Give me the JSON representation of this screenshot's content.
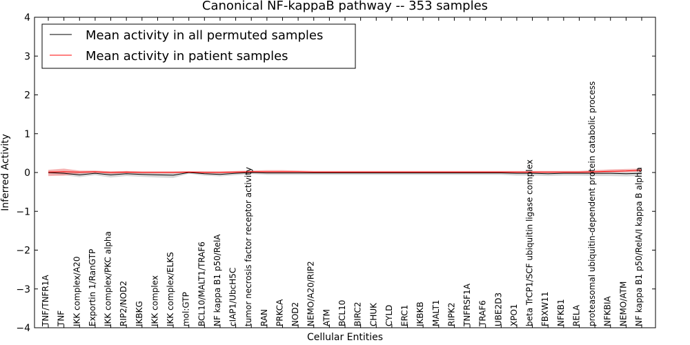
{
  "chart_data": {
    "type": "line",
    "title": "Canonical NF-kappaB pathway -- 353 samples",
    "xlabel": "Cellular Entities",
    "ylabel": "Inferred Activity",
    "ylim": [
      -4,
      4
    ],
    "yticks": [
      -4,
      -3,
      -2,
      -1,
      0,
      1,
      2,
      3,
      4
    ],
    "ytick_labels": [
      "−4",
      "−3",
      "−2",
      "−1",
      "0",
      "1",
      "2",
      "3",
      "4"
    ],
    "legend_position": "top-left",
    "categories": [
      "TNF/TNFR1A",
      "TNF",
      "IKK complex/A20",
      "Exportin 1/RanGTP",
      "IKK complex/PKC alpha",
      "RIP2/NOD2",
      "IKBKG",
      "IKK complex",
      "IKK complex/ELKS",
      "mol:GTP",
      "BCL10/MALT1/TRAF6",
      "NF kappa B1 p50/RelA",
      "cIAP1/UbcH5C",
      "tumor necrosis factor receptor activity",
      "RAN",
      "PRKCA",
      "NOD2",
      "NEMO/A20/RIP2",
      "ATM",
      "BCL10",
      "BIRC2",
      "CHUK",
      "CYLD",
      "ERC1",
      "IKBKB",
      "MALT1",
      "RIPK2",
      "TNFRSF1A",
      "TRAF6",
      "UBE2D3",
      "XPO1",
      "beta TrCP1/SCF ubiquitin ligase complex",
      "FBXW11",
      "NFKB1",
      "RELA",
      "proteasomal ubiquitin-dependent protein catabolic process",
      "NFKBIA",
      "NEMO/ATM",
      "NF kappa B1 p50/RelA/I kappa B alpha"
    ],
    "series": [
      {
        "name": "Mean activity in all permuted samples",
        "color": "#000000",
        "band_color": "#c8c8c8",
        "values": [
          0.0,
          -0.02,
          -0.06,
          -0.02,
          -0.06,
          -0.03,
          -0.05,
          -0.06,
          -0.07,
          0.0,
          -0.03,
          -0.05,
          -0.02,
          0.0,
          -0.01,
          -0.01,
          -0.01,
          -0.01,
          -0.01,
          -0.01,
          -0.01,
          -0.01,
          -0.01,
          -0.01,
          -0.01,
          -0.01,
          -0.01,
          -0.01,
          -0.01,
          -0.01,
          -0.02,
          -0.02,
          -0.03,
          -0.02,
          -0.02,
          -0.02,
          -0.02,
          -0.03,
          -0.02
        ],
        "band_upper": [
          0.03,
          0.03,
          0.01,
          0.02,
          0.01,
          0.02,
          0.01,
          0.01,
          0.01,
          0.03,
          0.02,
          0.01,
          0.02,
          0.03,
          0.02,
          0.03,
          0.03,
          0.03,
          0.03,
          0.03,
          0.03,
          0.03,
          0.03,
          0.03,
          0.03,
          0.03,
          0.03,
          0.03,
          0.03,
          0.03,
          0.02,
          0.02,
          0.02,
          0.02,
          0.02,
          0.02,
          0.02,
          0.02,
          0.02
        ],
        "band_lower": [
          -0.04,
          -0.07,
          -0.12,
          -0.07,
          -0.13,
          -0.09,
          -0.11,
          -0.13,
          -0.14,
          -0.03,
          -0.08,
          -0.1,
          -0.07,
          -0.04,
          -0.06,
          -0.06,
          -0.06,
          -0.06,
          -0.06,
          -0.06,
          -0.06,
          -0.06,
          -0.06,
          -0.06,
          -0.06,
          -0.06,
          -0.06,
          -0.06,
          -0.06,
          -0.06,
          -0.08,
          -0.08,
          -0.09,
          -0.08,
          -0.08,
          -0.09,
          -0.09,
          -0.1,
          -0.09
        ]
      },
      {
        "name": "Mean activity in patient samples",
        "color": "#ff0000",
        "band_color": "#f08080",
        "values": [
          0.01,
          0.02,
          0.01,
          0.02,
          0.0,
          0.01,
          0.0,
          0.0,
          0.0,
          0.01,
          0.0,
          0.0,
          0.01,
          0.02,
          0.02,
          0.02,
          0.02,
          0.01,
          0.01,
          0.01,
          0.01,
          0.01,
          0.01,
          0.01,
          0.01,
          0.01,
          0.01,
          0.01,
          0.01,
          0.01,
          0.01,
          0.01,
          0.01,
          0.01,
          0.01,
          0.02,
          0.03,
          0.04,
          0.06
        ],
        "band_upper": [
          0.07,
          0.1,
          0.05,
          0.05,
          0.03,
          0.04,
          0.03,
          0.03,
          0.03,
          0.03,
          0.03,
          0.03,
          0.04,
          0.05,
          0.06,
          0.06,
          0.05,
          0.04,
          0.04,
          0.04,
          0.04,
          0.04,
          0.04,
          0.04,
          0.04,
          0.04,
          0.04,
          0.04,
          0.04,
          0.04,
          0.04,
          0.04,
          0.04,
          0.04,
          0.04,
          0.06,
          0.08,
          0.09,
          0.1
        ],
        "band_lower": [
          -0.09,
          -0.08,
          -0.03,
          -0.01,
          -0.03,
          -0.02,
          -0.02,
          -0.02,
          -0.02,
          -0.01,
          -0.02,
          -0.02,
          -0.01,
          -0.01,
          -0.01,
          -0.01,
          -0.01,
          -0.01,
          -0.01,
          -0.01,
          -0.01,
          -0.01,
          -0.01,
          -0.01,
          -0.01,
          -0.01,
          -0.01,
          -0.01,
          -0.01,
          -0.01,
          -0.01,
          -0.01,
          -0.01,
          -0.01,
          -0.01,
          -0.01,
          0.0,
          0.01,
          0.02
        ]
      }
    ]
  }
}
